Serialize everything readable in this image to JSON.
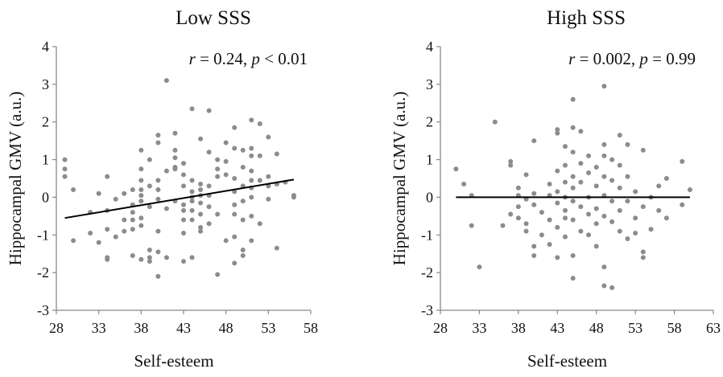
{
  "chart_data": [
    {
      "type": "scatter",
      "title": "Low SSS",
      "xlabel": "Self-esteem",
      "ylabel": "Hippocampal GMV (a.u.)",
      "xlim": [
        28,
        58
      ],
      "ylim": [
        -3,
        4
      ],
      "xticks": [
        "28",
        "33",
        "38",
        "43",
        "48",
        "53",
        "58"
      ],
      "yticks": [
        "-3",
        "-2",
        "-1",
        "0",
        "1",
        "2",
        "3",
        "4"
      ],
      "annotation": {
        "r_label": "r",
        "r_value": " = 0.24, ",
        "p_label": "p",
        "p_value": " < 0.01"
      },
      "fit_line": {
        "x": [
          29,
          56
        ],
        "y": [
          -0.55,
          0.47
        ]
      },
      "marker_color": "#8c8c8c",
      "line_color": "#000000",
      "points": [
        [
          29,
          1.0
        ],
        [
          29,
          0.75
        ],
        [
          29,
          0.55
        ],
        [
          30,
          0.2
        ],
        [
          30,
          -1.15
        ],
        [
          32,
          -0.95
        ],
        [
          32,
          -0.4
        ],
        [
          33,
          -1.2
        ],
        [
          33,
          0.1
        ],
        [
          34,
          0.55
        ],
        [
          34,
          -0.35
        ],
        [
          34,
          -0.85
        ],
        [
          34,
          -1.6
        ],
        [
          34,
          -1.65
        ],
        [
          35,
          -0.05
        ],
        [
          35,
          -1.05
        ],
        [
          36,
          0.1
        ],
        [
          36,
          -0.6
        ],
        [
          36,
          -0.9
        ],
        [
          37,
          0.2
        ],
        [
          37,
          -0.2
        ],
        [
          37,
          -0.4
        ],
        [
          37,
          -0.6
        ],
        [
          37,
          -0.85
        ],
        [
          37,
          -1.55
        ],
        [
          38,
          1.25
        ],
        [
          38,
          0.75
        ],
        [
          38,
          0.45
        ],
        [
          38,
          0.2
        ],
        [
          38,
          0.05
        ],
        [
          38,
          -0.1
        ],
        [
          38,
          -0.55
        ],
        [
          38,
          -0.75
        ],
        [
          38,
          -1.65
        ],
        [
          39,
          1.0
        ],
        [
          39,
          0.3
        ],
        [
          39,
          -0.25
        ],
        [
          39,
          -1.4
        ],
        [
          39,
          -1.6
        ],
        [
          39,
          -1.7
        ],
        [
          40,
          1.65
        ],
        [
          40,
          1.45
        ],
        [
          40,
          0.45
        ],
        [
          40,
          0.2
        ],
        [
          40,
          -0.05
        ],
        [
          40,
          -0.9
        ],
        [
          40,
          -1.45
        ],
        [
          40,
          -2.1
        ],
        [
          41,
          3.1
        ],
        [
          41,
          0.7
        ],
        [
          41,
          -0.3
        ],
        [
          41,
          -1.6
        ],
        [
          42,
          1.7
        ],
        [
          42,
          1.25
        ],
        [
          42,
          1.05
        ],
        [
          42,
          0.8
        ],
        [
          42,
          0.75
        ],
        [
          42,
          -0.1
        ],
        [
          43,
          0.9
        ],
        [
          43,
          0.6
        ],
        [
          43,
          0.3
        ],
        [
          43,
          -0.2
        ],
        [
          43,
          -0.35
        ],
        [
          43,
          -0.6
        ],
        [
          43,
          -0.95
        ],
        [
          43,
          -1.7
        ],
        [
          44,
          2.35
        ],
        [
          44,
          0.45
        ],
        [
          44,
          0.15
        ],
        [
          44,
          0.0
        ],
        [
          44,
          -0.1
        ],
        [
          44,
          -0.35
        ],
        [
          44,
          -0.6
        ],
        [
          44,
          -1.6
        ],
        [
          45,
          1.55
        ],
        [
          45,
          0.35
        ],
        [
          45,
          0.2
        ],
        [
          45,
          0.05
        ],
        [
          45,
          -0.15
        ],
        [
          45,
          -0.45
        ],
        [
          45,
          -0.8
        ],
        [
          45,
          -0.9
        ],
        [
          46,
          2.3
        ],
        [
          46,
          1.2
        ],
        [
          46,
          0.3
        ],
        [
          46,
          0.05
        ],
        [
          46,
          -0.25
        ],
        [
          46,
          -0.7
        ],
        [
          47,
          -2.05
        ],
        [
          47,
          1.0
        ],
        [
          47,
          0.75
        ],
        [
          47,
          0.55
        ],
        [
          47,
          -0.45
        ],
        [
          48,
          1.45
        ],
        [
          48,
          0.95
        ],
        [
          48,
          0.6
        ],
        [
          48,
          -1.15
        ],
        [
          49,
          1.85
        ],
        [
          49,
          1.3
        ],
        [
          49,
          0.5
        ],
        [
          49,
          0.15
        ],
        [
          49,
          -0.2
        ],
        [
          49,
          -0.45
        ],
        [
          49,
          -1.05
        ],
        [
          49,
          -1.75
        ],
        [
          50,
          1.25
        ],
        [
          50,
          0.8
        ],
        [
          50,
          0.3
        ],
        [
          50,
          -0.1
        ],
        [
          50,
          -0.6
        ],
        [
          50,
          -1.4
        ],
        [
          50,
          -1.55
        ],
        [
          51,
          2.05
        ],
        [
          51,
          1.3
        ],
        [
          51,
          1.1
        ],
        [
          51,
          0.7
        ],
        [
          51,
          0.45
        ],
        [
          51,
          0.25
        ],
        [
          51,
          0.0
        ],
        [
          51,
          -0.5
        ],
        [
          51,
          -1.15
        ],
        [
          52,
          1.95
        ],
        [
          52,
          1.1
        ],
        [
          52,
          0.45
        ],
        [
          52,
          -0.7
        ],
        [
          53,
          1.6
        ],
        [
          53,
          0.55
        ],
        [
          53,
          0.3
        ],
        [
          53,
          -0.05
        ],
        [
          54,
          1.15
        ],
        [
          54,
          0.35
        ],
        [
          54,
          -1.35
        ],
        [
          55,
          0.4
        ],
        [
          56,
          0.05
        ],
        [
          56,
          0.0
        ]
      ]
    },
    {
      "type": "scatter",
      "title": "High SSS",
      "xlabel": "Self-esteem",
      "ylabel": "Hippocampal GMV (a.u.)",
      "xlim": [
        28,
        63
      ],
      "ylim": [
        -3,
        4
      ],
      "xticks": [
        "28",
        "33",
        "38",
        "43",
        "48",
        "53",
        "58",
        "63"
      ],
      "yticks": [
        "-3",
        "-2",
        "-1",
        "0",
        "1",
        "2",
        "3",
        "4"
      ],
      "annotation": {
        "r_label": "r",
        "r_value": " = 0.002, ",
        "p_label": "p",
        "p_value": " = 0.99"
      },
      "fit_line": {
        "x": [
          30,
          60
        ],
        "y": [
          0.0,
          0.0
        ]
      },
      "marker_color": "#8c8c8c",
      "line_color": "#000000",
      "points": [
        [
          30,
          0.75
        ],
        [
          31,
          0.35
        ],
        [
          32,
          0.05
        ],
        [
          32,
          -0.75
        ],
        [
          33,
          -1.85
        ],
        [
          35,
          2.0
        ],
        [
          36,
          -0.75
        ],
        [
          37,
          0.95
        ],
        [
          37,
          0.85
        ],
        [
          37,
          -0.45
        ],
        [
          38,
          0.25
        ],
        [
          38,
          0.05
        ],
        [
          38,
          -0.25
        ],
        [
          38,
          -0.55
        ],
        [
          39,
          0.6
        ],
        [
          39,
          -0.05
        ],
        [
          39,
          -0.7
        ],
        [
          39,
          -0.9
        ],
        [
          40,
          1.5
        ],
        [
          40,
          0.1
        ],
        [
          40,
          -0.2
        ],
        [
          40,
          -1.3
        ],
        [
          40,
          -1.55
        ],
        [
          41,
          -0.4
        ],
        [
          41,
          -1.0
        ],
        [
          42,
          0.35
        ],
        [
          42,
          0.05
        ],
        [
          42,
          -0.6
        ],
        [
          42,
          -1.25
        ],
        [
          43,
          1.8
        ],
        [
          43,
          1.7
        ],
        [
          43,
          0.7
        ],
        [
          43,
          0.15
        ],
        [
          43,
          -0.15
        ],
        [
          43,
          -0.8
        ],
        [
          43,
          -1.6
        ],
        [
          44,
          1.35
        ],
        [
          44,
          0.85
        ],
        [
          44,
          0.4
        ],
        [
          44,
          0.0
        ],
        [
          44,
          -0.35
        ],
        [
          44,
          -0.55
        ],
        [
          44,
          -1.05
        ],
        [
          45,
          2.6
        ],
        [
          45,
          1.85
        ],
        [
          45,
          1.2
        ],
        [
          45,
          0.55
        ],
        [
          45,
          0.25
        ],
        [
          45,
          -0.1
        ],
        [
          45,
          -0.6
        ],
        [
          45,
          -1.55
        ],
        [
          45,
          -2.15
        ],
        [
          46,
          1.75
        ],
        [
          46,
          0.9
        ],
        [
          46,
          0.4
        ],
        [
          46,
          -0.25
        ],
        [
          46,
          -0.9
        ],
        [
          47,
          1.1
        ],
        [
          47,
          0.65
        ],
        [
          47,
          0.0
        ],
        [
          47,
          -0.45
        ],
        [
          47,
          -1.0
        ],
        [
          48,
          0.8
        ],
        [
          48,
          0.3
        ],
        [
          48,
          -0.3
        ],
        [
          48,
          -0.7
        ],
        [
          48,
          -1.3
        ],
        [
          49,
          2.95
        ],
        [
          49,
          1.4
        ],
        [
          49,
          1.1
        ],
        [
          49,
          0.55
        ],
        [
          49,
          0.05
        ],
        [
          49,
          -0.5
        ],
        [
          49,
          -1.85
        ],
        [
          49,
          -2.35
        ],
        [
          50,
          1.0
        ],
        [
          50,
          0.45
        ],
        [
          50,
          -0.1
        ],
        [
          50,
          -0.65
        ],
        [
          50,
          -2.4
        ],
        [
          51,
          1.65
        ],
        [
          51,
          0.85
        ],
        [
          51,
          0.25
        ],
        [
          51,
          -0.35
        ],
        [
          51,
          -0.9
        ],
        [
          52,
          1.4
        ],
        [
          52,
          0.55
        ],
        [
          52,
          -0.1
        ],
        [
          52,
          -1.1
        ],
        [
          53,
          0.15
        ],
        [
          53,
          -0.55
        ],
        [
          53,
          -0.95
        ],
        [
          54,
          1.25
        ],
        [
          54,
          -0.25
        ],
        [
          54,
          -1.45
        ],
        [
          54,
          -1.6
        ],
        [
          55,
          0.0
        ],
        [
          55,
          -0.85
        ],
        [
          56,
          0.3
        ],
        [
          56,
          -0.35
        ],
        [
          57,
          0.5
        ],
        [
          57,
          -0.55
        ],
        [
          59,
          0.95
        ],
        [
          59,
          -0.2
        ],
        [
          60,
          0.2
        ]
      ]
    }
  ]
}
